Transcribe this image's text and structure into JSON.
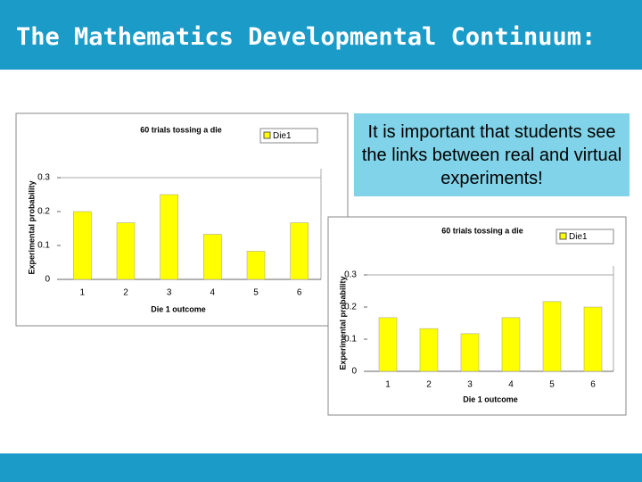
{
  "slide_title": "The Mathematics Developmental Continuum:",
  "callout": "It is important that students see the links between real and virtual experiments!",
  "chart_data": [
    {
      "type": "bar",
      "title": "60 trials tossing a die",
      "x_label": "Die 1 outcome",
      "y_label": "Experimental probability",
      "categories": [
        "1",
        "2",
        "3",
        "4",
        "5",
        "6"
      ],
      "series": [
        {
          "name": "Die1",
          "color": "#ffff00",
          "values": [
            0.2,
            0.167,
            0.25,
            0.133,
            0.083,
            0.167
          ]
        }
      ],
      "ylim": [
        0,
        0.3
      ],
      "yticks": [
        0,
        0.1,
        0.2,
        0.3
      ],
      "grid": false
    },
    {
      "type": "bar",
      "title": "60 trials tossing a die",
      "x_label": "Die 1 outcome",
      "y_label": "Experimental probability",
      "categories": [
        "1",
        "2",
        "3",
        "4",
        "5",
        "6"
      ],
      "series": [
        {
          "name": "Die1",
          "color": "#ffff00",
          "values": [
            0.167,
            0.133,
            0.117,
            0.167,
            0.217,
            0.2
          ]
        }
      ],
      "ylim": [
        0,
        0.3
      ],
      "yticks": [
        0,
        0.1,
        0.2,
        0.3
      ],
      "grid": false
    }
  ]
}
